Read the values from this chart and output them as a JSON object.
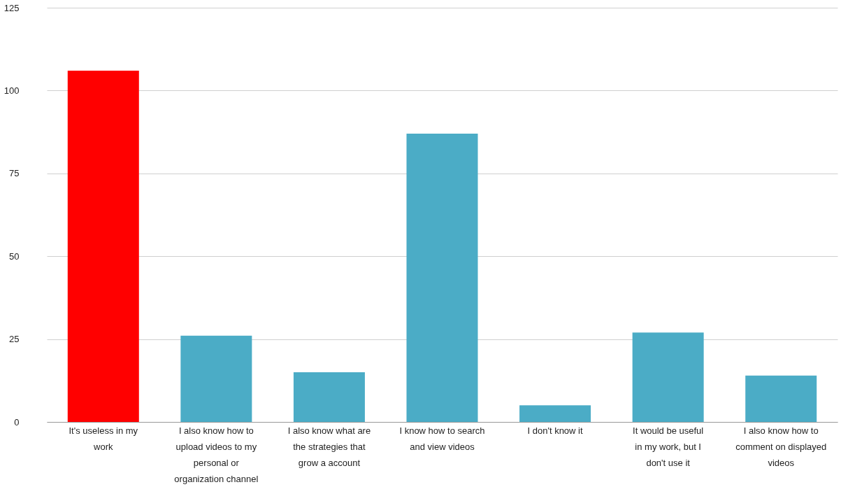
{
  "chart_data": {
    "type": "bar",
    "categories": [
      "It's useless in my work",
      "I also know how to upload videos to my personal or organization channel",
      "I also know what are the strategies that grow a account",
      "I know how to search and view videos",
      "I don't know it",
      "It would be useful in my work, but I don't use it",
      "I also know how to comment on displayed videos"
    ],
    "values": [
      106,
      26,
      15,
      87,
      5,
      27,
      14
    ],
    "colors": [
      "#ff0000",
      "#4bacc6",
      "#4bacc6",
      "#4bacc6",
      "#4bacc6",
      "#4bacc6",
      "#4bacc6"
    ],
    "ylim": [
      0,
      125
    ],
    "yticks": [
      0,
      25,
      50,
      75,
      100,
      125
    ],
    "grid": "y"
  }
}
